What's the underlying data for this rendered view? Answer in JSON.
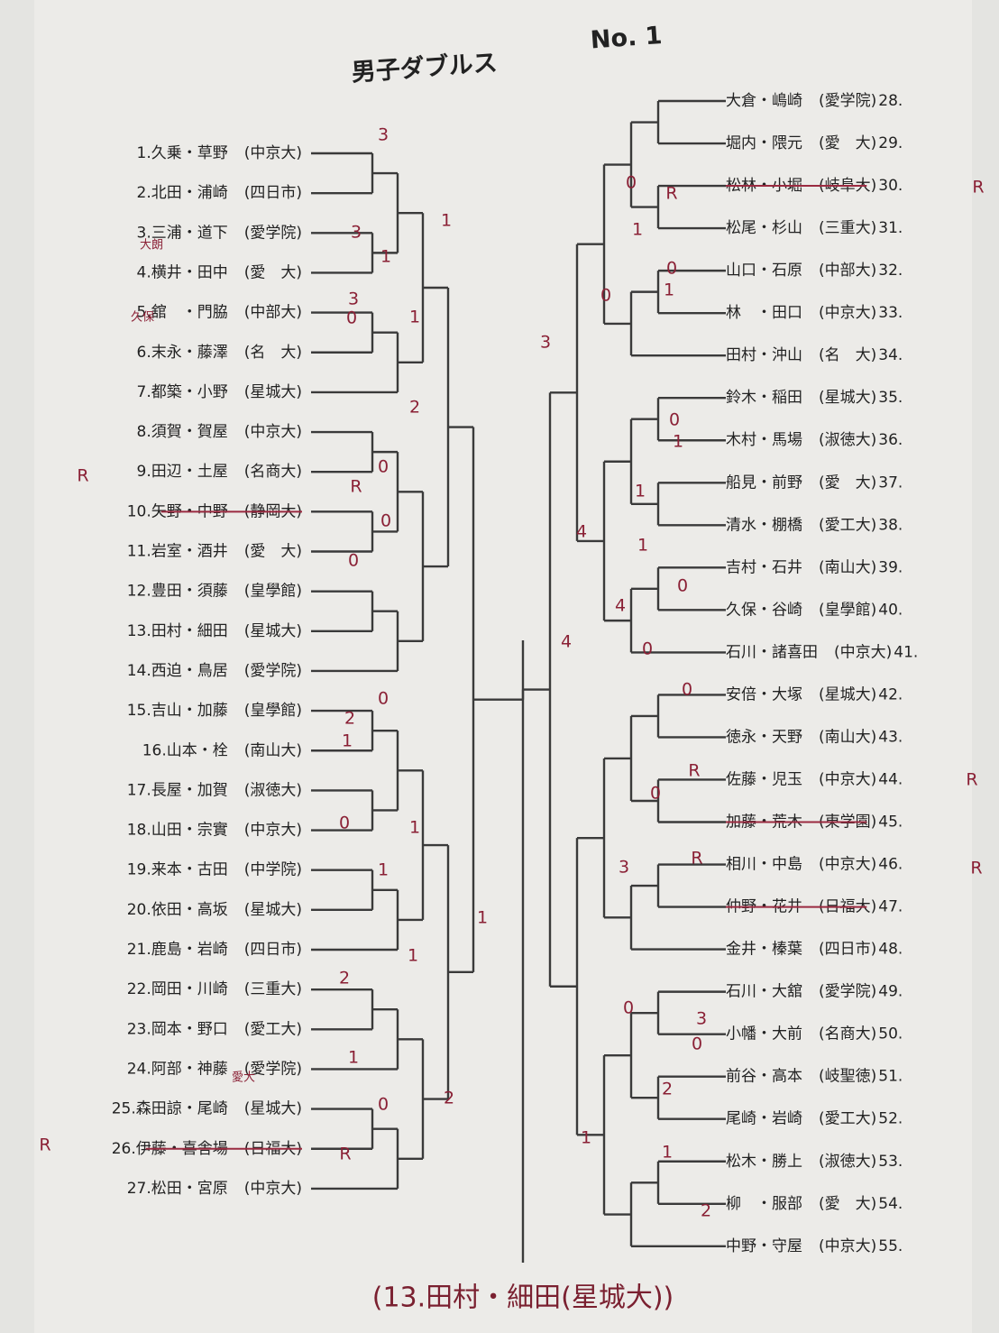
{
  "header": {
    "title": "男子ダブルス",
    "number": "No. 1"
  },
  "left": [
    {
      "no": "1.",
      "names": "久乗・草野",
      "school": "(中京大)"
    },
    {
      "no": "2.",
      "names": "北田・浦崎",
      "school": "(四日市)"
    },
    {
      "no": "3.",
      "names": "三浦・道下",
      "school": "(愛学院)"
    },
    {
      "no": "4.",
      "names": "横井・田中",
      "school": "(愛　大)"
    },
    {
      "no": "5.",
      "names": "舘　・門脇",
      "school": "(中部大)"
    },
    {
      "no": "6.",
      "names": "末永・藤澤",
      "school": "(名　大)"
    },
    {
      "no": "7.",
      "names": "都築・小野",
      "school": "(星城大)"
    },
    {
      "no": "8.",
      "names": "須賀・賀屋",
      "school": "(中京大)"
    },
    {
      "no": "9.",
      "names": "田辺・土屋",
      "school": "(名商大)"
    },
    {
      "no": "10.",
      "names": "矢野・中野",
      "school": "(静岡大)",
      "withdrawn": true
    },
    {
      "no": "11.",
      "names": "岩室・酒井",
      "school": "(愛　大)"
    },
    {
      "no": "12.",
      "names": "豊田・須藤",
      "school": "(皇學館)"
    },
    {
      "no": "13.",
      "names": "田村・細田",
      "school": "(星城大)"
    },
    {
      "no": "14.",
      "names": "西迫・鳥居",
      "school": "(愛学院)"
    },
    {
      "no": "15.",
      "names": "吉山・加藤",
      "school": "(皇學館)"
    },
    {
      "no": "16.",
      "names": "山本・栓",
      "school": "(南山大)"
    },
    {
      "no": "17.",
      "names": "長屋・加賀",
      "school": "(淑徳大)"
    },
    {
      "no": "18.",
      "names": "山田・宗實",
      "school": "(中京大)"
    },
    {
      "no": "19.",
      "names": "来本・古田",
      "school": "(中学院)"
    },
    {
      "no": "20.",
      "names": "依田・高坂",
      "school": "(星城大)"
    },
    {
      "no": "21.",
      "names": "鹿島・岩崎",
      "school": "(四日市)"
    },
    {
      "no": "22.",
      "names": "岡田・川崎",
      "school": "(三重大)"
    },
    {
      "no": "23.",
      "names": "岡本・野口",
      "school": "(愛工大)"
    },
    {
      "no": "24.",
      "names": "阿部・神藤",
      "school": "(愛学院)"
    },
    {
      "no": "25.",
      "names": "森田諒・尾崎",
      "school": "(星城大)"
    },
    {
      "no": "26.",
      "names": "伊藤・喜舎場",
      "school": "(日福大)",
      "withdrawn": true
    },
    {
      "no": "27.",
      "names": "松田・宮原",
      "school": "(中京大)"
    }
  ],
  "right": [
    {
      "no": "28.",
      "names": "大倉・嶋崎",
      "school": "(愛学院)"
    },
    {
      "no": "29.",
      "names": "堀内・隈元",
      "school": "(愛　大)"
    },
    {
      "no": "30.",
      "names": "松林・小堀",
      "school": "(岐阜大)",
      "withdrawn": true
    },
    {
      "no": "31.",
      "names": "松尾・杉山",
      "school": "(三重大)"
    },
    {
      "no": "32.",
      "names": "山口・石原",
      "school": "(中部大)"
    },
    {
      "no": "33.",
      "names": "林　・田口",
      "school": "(中京大)"
    },
    {
      "no": "34.",
      "names": "田村・沖山",
      "school": "(名　大)"
    },
    {
      "no": "35.",
      "names": "鈴木・稲田",
      "school": "(星城大)"
    },
    {
      "no": "36.",
      "names": "木村・馬場",
      "school": "(淑徳大)"
    },
    {
      "no": "37.",
      "names": "船見・前野",
      "school": "(愛　大)"
    },
    {
      "no": "38.",
      "names": "清水・棚橋",
      "school": "(愛工大)"
    },
    {
      "no": "39.",
      "names": "吉村・石井",
      "school": "(南山大)"
    },
    {
      "no": "40.",
      "names": "久保・谷崎",
      "school": "(皇學館)"
    },
    {
      "no": "41.",
      "names": "石川・諸喜田",
      "school": "(中京大)"
    },
    {
      "no": "42.",
      "names": "安倍・大塚",
      "school": "(星城大)"
    },
    {
      "no": "43.",
      "names": "徳永・天野",
      "school": "(南山大)"
    },
    {
      "no": "44.",
      "names": "佐藤・児玉",
      "school": "(中京大)"
    },
    {
      "no": "45.",
      "names": "加藤・荒木",
      "school": "(東学園)",
      "withdrawn": true
    },
    {
      "no": "46.",
      "names": "相川・中島",
      "school": "(中京大)"
    },
    {
      "no": "47.",
      "names": "仲野・花井",
      "school": "(日福大)",
      "withdrawn": true
    },
    {
      "no": "48.",
      "names": "金井・榛葉",
      "school": "(四日市)"
    },
    {
      "no": "49.",
      "names": "石川・大舘",
      "school": "(愛学院)"
    },
    {
      "no": "50.",
      "names": "小幡・大前",
      "school": "(名商大)"
    },
    {
      "no": "51.",
      "names": "前谷・高本",
      "school": "(岐聖徳)"
    },
    {
      "no": "52.",
      "names": "尾崎・岩崎",
      "school": "(愛工大)"
    },
    {
      "no": "53.",
      "names": "松木・勝上",
      "school": "(淑徳大)"
    },
    {
      "no": "54.",
      "names": "柳　・服部",
      "school": "(愛　大)"
    },
    {
      "no": "55.",
      "names": "中野・守屋",
      "school": "(中京大)"
    }
  ],
  "annotations": [
    "3",
    "3",
    "1",
    "3",
    "0",
    "1",
    "1",
    "2",
    "0",
    "R",
    "R",
    "0",
    "0",
    "0",
    "2",
    "1",
    "1",
    "0",
    "1",
    "1",
    "1",
    "2",
    "1",
    "0",
    "2",
    "R",
    "R",
    "3",
    "4",
    "0",
    "R",
    "R",
    "1",
    "0",
    "1",
    "0",
    "0",
    "1",
    "1",
    "4",
    "1",
    "0",
    "4",
    "0",
    "0",
    "R",
    "R",
    "0",
    "R",
    "R",
    "3",
    "0",
    "3",
    "0",
    "2",
    "1",
    "1",
    "2",
    "大朗",
    "久保",
    "愛大"
  ],
  "footer": "(13.田村・細田(星城大))"
}
